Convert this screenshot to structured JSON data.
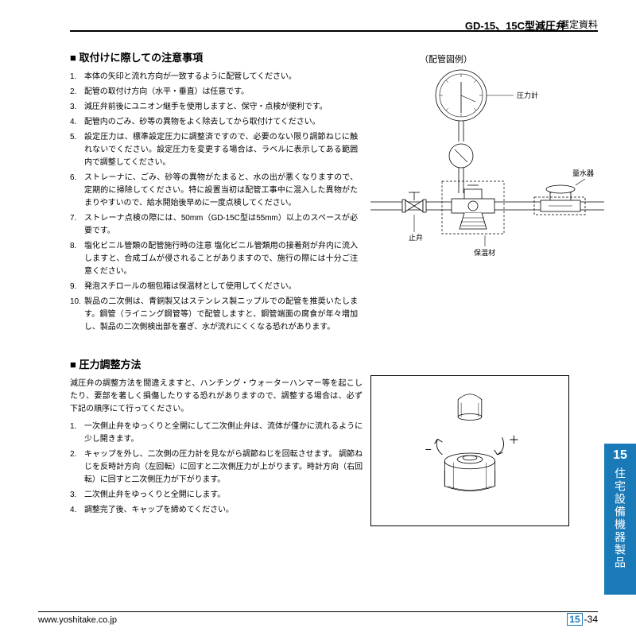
{
  "header": {
    "code": "GD-15、15C型減圧弁",
    "label": "選定資料"
  },
  "section1": {
    "title": "■ 取付けに際しての注意事項",
    "items": [
      "本体の矢印と流れ方向が一致するように配管してください。",
      "配管の取付け方向（水平・垂直）は任意です。",
      "減圧弁前後にユニオン継手を使用しますと、保守・点検が便利です。",
      "配管内のごみ、砂等の異物をよく除去してから取付けてください。",
      "設定圧力は、標準設定圧力に調整済ですので、必要のない限り調節ねじに触れないでください。設定圧力を変更する場合は、ラベルに表示してある範囲内で調整してください。",
      "ストレーナに、ごみ、砂等の異物がたまると、水の出が悪くなりますので、定期的に掃除してください。特に設置当初は配管工事中に混入した異物がたまりやすいので、給水開始後早めに一度点検してください。",
      "ストレーナ点検の際には、50mm（GD-15C型は55mm）以上のスペースが必要です。",
      "塩化ビニル管類の配管施行時の注意  塩化ビニル管類用の接着剤が弁内に流入しますと、合成ゴムが侵されることがありますので、施行の際には十分ご注意ください。",
      "発泡スチロールの梱包箱は保温材として使用してください。",
      "製品の二次側は、青銅製又はステンレス製ニップルでの配管を推奨いたします。鋼管（ライニング鋼管等）で配管しますと、鋼管端面の腐食が年々増加し、製品の二次側検出部を塞ぎ、水が流れにくくなる恐れがあります。"
    ]
  },
  "diagram1": {
    "title": "（配管図例）",
    "labels": {
      "gauge": "圧力計",
      "meter": "量水器",
      "valve": "止弁",
      "insul": "保温材"
    },
    "colors": {
      "stroke": "#000000",
      "fill": "#ffffff"
    },
    "stroke_width": 0.8
  },
  "section2": {
    "title": "■ 圧力調整方法",
    "intro": "減圧弁の調整方法を間違えますと、ハンチング・ウォーターハンマー等を起こしたり、要部を著しく損傷したりする恐れがありますので、調整する場合は、必ず下記の順序にて行ってください。",
    "items": [
      "一次側止弁をゆっくりと全開にして二次側止弁は、流体が僅かに流れるように少し開きます。",
      "キャップを外し、二次側の圧力計を見ながら調節ねじを回転させます。  調節ねじを反時計方向（左回転）に回すと二次側圧力が上がります。時計方向（右回転）に回すと二次側圧力が下がります。",
      "二次側止弁をゆっくりと全開にします。",
      "調整完了後、キャップを締めてください。"
    ]
  },
  "diagram2": {
    "labels": {
      "minus": "−",
      "plus": "＋"
    },
    "colors": {
      "stroke": "#000000"
    },
    "stroke_width": 0.8
  },
  "sidebar": {
    "number": "15",
    "label": "住宅設備機器製品",
    "bg": "#1a7ab8",
    "fg": "#ffffff"
  },
  "footer": {
    "url": "www.yoshitake.co.jp",
    "page_major": "15",
    "page_minor": "-34"
  }
}
